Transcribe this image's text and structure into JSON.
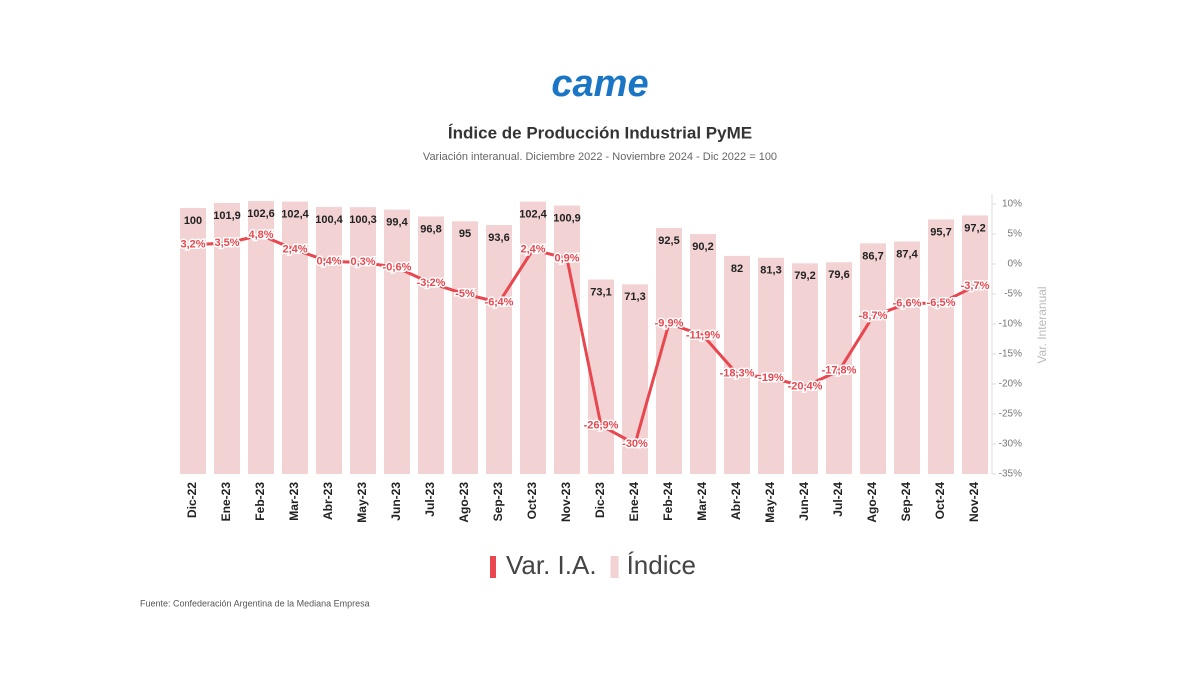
{
  "logo": "came",
  "chart_data": {
    "type": "bar_line",
    "title": "Índice de Producción Industrial PyME",
    "subtitle": "Variación interanual. Diciembre 2022 - Noviembre 2024 - Dic 2022 = 100",
    "y2label": "Var. Interanual",
    "source": "Fuente: Confederación Argentina de la Mediana Empresa",
    "categories": [
      "Dic-22",
      "Ene-23",
      "Feb-23",
      "Mar-23",
      "Abr-23",
      "May-23",
      "Jun-23",
      "Jul-23",
      "Ago-23",
      "Sep-23",
      "Oct-23",
      "Nov-23",
      "Dic-23",
      "Ene-24",
      "Feb-24",
      "Mar-24",
      "Abr-24",
      "May-24",
      "Jun-24",
      "Jul-24",
      "Ago-24",
      "Sep-24",
      "Oct-24",
      "Nov-24"
    ],
    "series": [
      {
        "name": "Var. I.A.",
        "type": "line",
        "axis": "y2",
        "color": "#e8474f",
        "values": [
          3.2,
          3.5,
          4.8,
          2.4,
          0.4,
          0.3,
          -0.6,
          -3.2,
          -5,
          -6.4,
          2.4,
          0.9,
          -26.9,
          -30,
          -9.9,
          -11.9,
          -18.3,
          -19,
          -20.4,
          -17.8,
          -8.7,
          -6.6,
          -6.5,
          -3.7
        ],
        "value_labels": [
          "3,2%",
          "3,5%",
          "4,8%",
          "2,4%",
          "0,4%",
          "0,3%",
          "-0,6%",
          "-3,2%",
          "-5%",
          "-6,4%",
          "2,4%",
          "0,9%",
          "-26,9%",
          "-30%",
          "-9,9%",
          "-11,9%",
          "-18,3%",
          "-19%",
          "-20,4%",
          "-17,8%",
          "-8,7%",
          "-6,6%",
          "-6,5%",
          "-3,7%"
        ]
      },
      {
        "name": "Índice",
        "type": "bar",
        "axis": "y",
        "color": "#f2d2d2",
        "values": [
          100,
          101.9,
          102.6,
          102.4,
          100.4,
          100.3,
          99.4,
          96.8,
          95,
          93.6,
          102.4,
          100.9,
          73.1,
          71.3,
          92.5,
          90.2,
          82,
          81.3,
          79.2,
          79.6,
          86.7,
          87.4,
          95.7,
          97.2
        ],
        "value_labels": [
          "100",
          "101,9",
          "102,6",
          "102,4",
          "100,4",
          "100,3",
          "99,4",
          "96,8",
          "95",
          "93,6",
          "102,4",
          "100,9",
          "73,1",
          "71,3",
          "92,5",
          "90,2",
          "82",
          "81,3",
          "79,2",
          "79,6",
          "86,7",
          "87,4",
          "95,7",
          "97,2"
        ]
      }
    ],
    "ylim": [
      0,
      101.5
    ],
    "y2lim": [
      -35,
      10
    ],
    "y2ticks": [
      {
        "value": 10,
        "label": "10%"
      },
      {
        "value": 5,
        "label": "5%"
      },
      {
        "value": 0,
        "label": "0%"
      },
      {
        "value": -5,
        "label": "-5%"
      },
      {
        "value": -10,
        "label": "-10%"
      },
      {
        "value": -15,
        "label": "-15%"
      },
      {
        "value": -20,
        "label": "-20%"
      },
      {
        "value": -25,
        "label": "-25%"
      },
      {
        "value": -30,
        "label": "-30%"
      },
      {
        "value": -35,
        "label": "-35%"
      }
    ],
    "legend": "bottom"
  }
}
